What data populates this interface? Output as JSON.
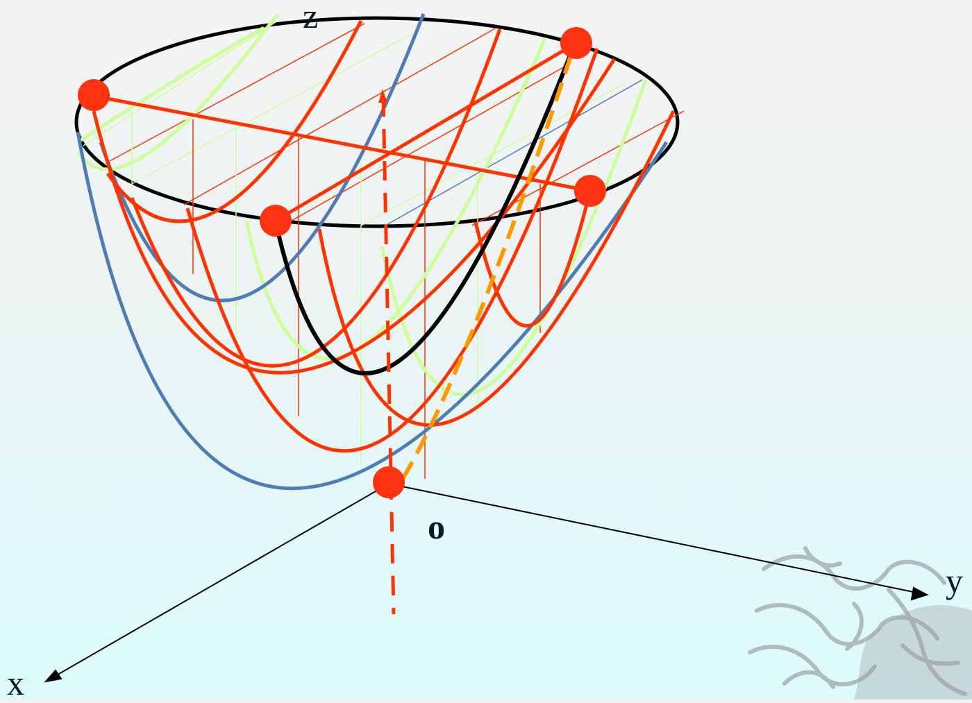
{
  "labels": {
    "z_axis": "z",
    "y_axis": "y",
    "x_axis": "x",
    "origin": "o"
  },
  "colors": {
    "red": "#ff3300",
    "blue": "#4d7db4",
    "light_green": "#ccff99",
    "black": "#000000",
    "orange": "#ff9900",
    "point": "#ff3311"
  }
}
